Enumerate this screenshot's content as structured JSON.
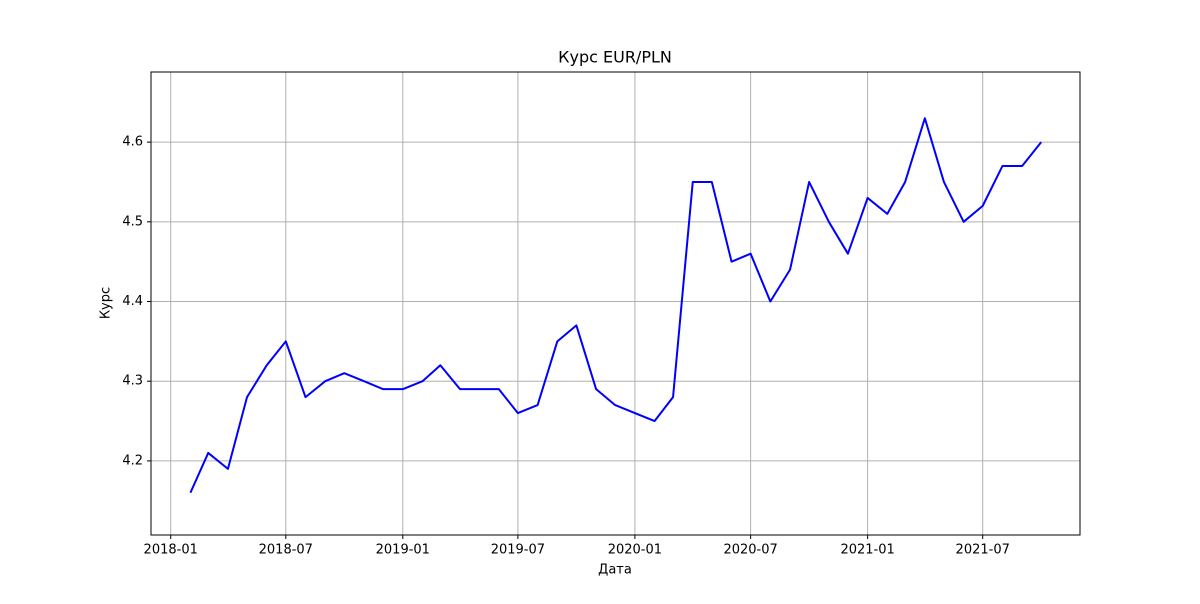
{
  "chart_data": {
    "type": "line",
    "title": "Курс EUR/PLN",
    "x_label": "Дата",
    "y_label": "Курс",
    "x": [
      "2018-02",
      "2018-03",
      "2018-04",
      "2018-05",
      "2018-06",
      "2018-07",
      "2018-08",
      "2018-09",
      "2018-10",
      "2018-11",
      "2018-12",
      "2019-01",
      "2019-02",
      "2019-03",
      "2019-04",
      "2019-05",
      "2019-06",
      "2019-07",
      "2019-08",
      "2019-09",
      "2019-10",
      "2019-11",
      "2019-12",
      "2020-01",
      "2020-02",
      "2020-03",
      "2020-04",
      "2020-05",
      "2020-06",
      "2020-07",
      "2020-08",
      "2020-09",
      "2020-10",
      "2020-11",
      "2020-12",
      "2021-01",
      "2021-02",
      "2021-03",
      "2021-04",
      "2021-05",
      "2021-06",
      "2021-07",
      "2021-08",
      "2021-09",
      "2021-10"
    ],
    "series": [
      {
        "name": "EUR/PLN",
        "color": "#0000ff",
        "values": [
          4.16,
          4.21,
          4.19,
          4.28,
          4.32,
          4.35,
          4.28,
          4.3,
          4.31,
          4.3,
          4.29,
          4.29,
          4.3,
          4.32,
          4.29,
          4.29,
          4.29,
          4.26,
          4.27,
          4.35,
          4.37,
          4.29,
          4.27,
          4.26,
          4.25,
          4.28,
          4.55,
          4.55,
          4.45,
          4.46,
          4.4,
          4.44,
          4.55,
          4.5,
          4.46,
          4.53,
          4.51,
          4.55,
          4.63,
          4.55,
          4.5,
          4.52,
          4.57,
          4.57,
          4.6
        ]
      }
    ],
    "xlim": [
      "2017-12",
      "2021-12"
    ],
    "xticks": [
      "2018-01",
      "2018-07",
      "2019-01",
      "2019-07",
      "2020-01",
      "2020-07",
      "2021-01",
      "2021-07"
    ],
    "ylim": [
      4.107,
      4.688
    ],
    "yticks": [
      4.2,
      4.3,
      4.4,
      4.5,
      4.6
    ],
    "grid": true
  }
}
